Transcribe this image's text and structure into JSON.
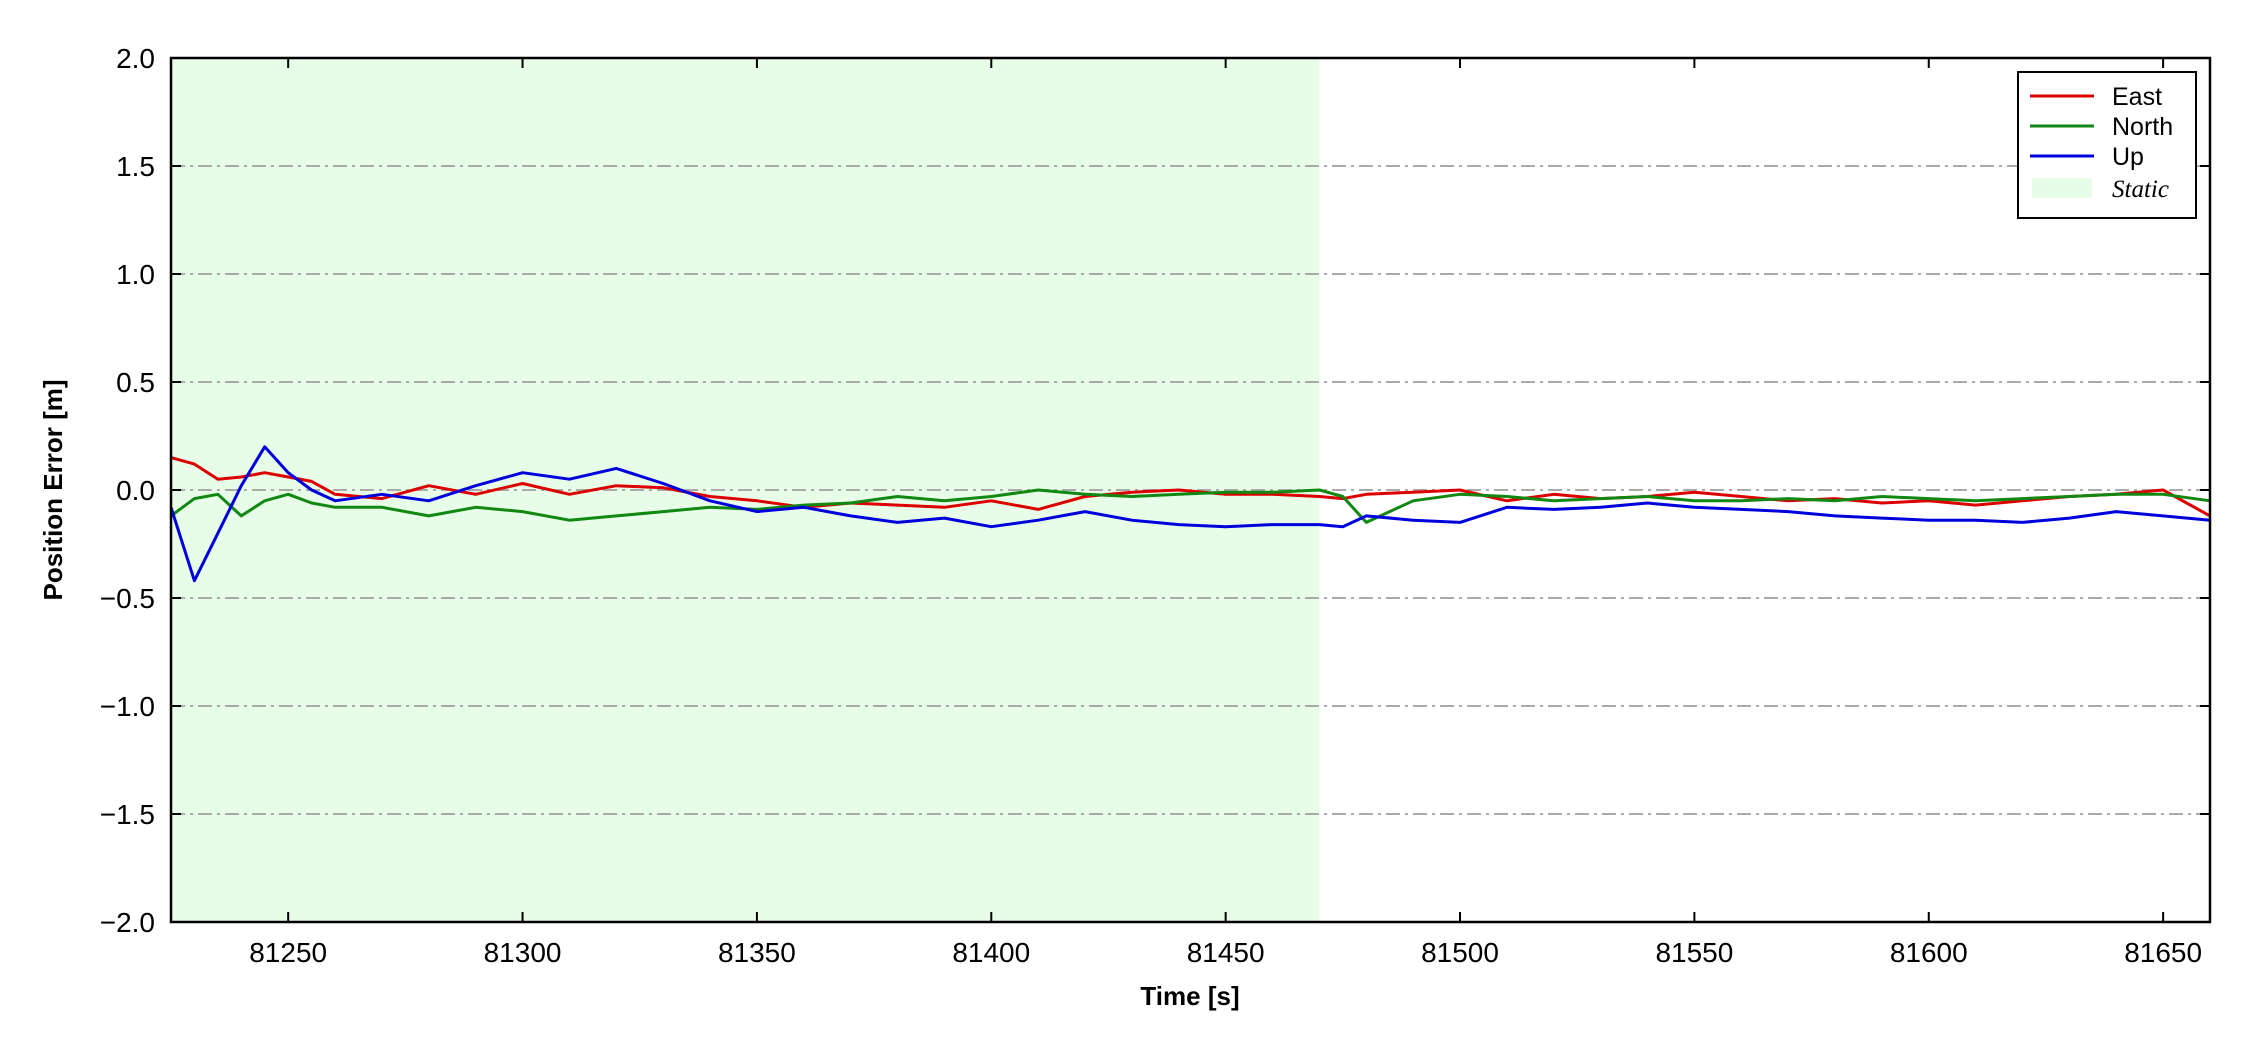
{
  "chart_data": {
    "type": "line",
    "xlabel": "Time [s]",
    "ylabel": "Position Error [m]",
    "xlim": [
      81225,
      81660
    ],
    "ylim": [
      -2.0,
      2.0
    ],
    "x_ticks": [
      81250,
      81300,
      81350,
      81400,
      81450,
      81500,
      81550,
      81600,
      81650
    ],
    "x_tick_labels": [
      "81250",
      "81300",
      "81350",
      "81400",
      "81450",
      "81500",
      "81550",
      "81600",
      "81650"
    ],
    "y_ticks": [
      -2.0,
      -1.5,
      -1.0,
      -0.5,
      0.0,
      0.5,
      1.0,
      1.5,
      2.0
    ],
    "y_tick_labels": [
      "−2.0",
      "−1.5",
      "−1.0",
      "−0.5",
      "0.0",
      "0.5",
      "1.0",
      "1.5",
      "2.0"
    ],
    "grid": "horizontal dash-dot",
    "legend_position": "top-right",
    "static_region": {
      "label": "Static",
      "x_start": 81225,
      "x_end": 81470,
      "color": "#e8fde8"
    },
    "x": [
      81225,
      81230,
      81235,
      81240,
      81245,
      81250,
      81255,
      81260,
      81270,
      81280,
      81290,
      81300,
      81310,
      81320,
      81330,
      81340,
      81350,
      81360,
      81370,
      81380,
      81390,
      81400,
      81410,
      81420,
      81430,
      81440,
      81450,
      81460,
      81470,
      81475,
      81480,
      81490,
      81500,
      81510,
      81520,
      81530,
      81540,
      81550,
      81560,
      81570,
      81580,
      81590,
      81600,
      81610,
      81620,
      81630,
      81640,
      81650,
      81660
    ],
    "series": [
      {
        "name": "East",
        "color": "#dd0000",
        "values": [
          0.15,
          0.12,
          0.05,
          0.06,
          0.08,
          0.06,
          0.04,
          -0.02,
          -0.04,
          0.02,
          -0.02,
          0.03,
          -0.02,
          0.02,
          0.01,
          -0.03,
          -0.05,
          -0.08,
          -0.06,
          -0.07,
          -0.08,
          -0.05,
          -0.09,
          -0.03,
          -0.01,
          0.0,
          -0.02,
          -0.02,
          -0.03,
          -0.04,
          -0.02,
          -0.01,
          0.0,
          -0.05,
          -0.02,
          -0.04,
          -0.03,
          -0.01,
          -0.03,
          -0.05,
          -0.04,
          -0.06,
          -0.05,
          -0.07,
          -0.05,
          -0.03,
          -0.02,
          0.0,
          -0.12
        ]
      },
      {
        "name": "North",
        "color": "#118811",
        "values": [
          -0.12,
          -0.04,
          -0.02,
          -0.12,
          -0.05,
          -0.02,
          -0.06,
          -0.08,
          -0.08,
          -0.12,
          -0.08,
          -0.1,
          -0.14,
          -0.12,
          -0.1,
          -0.08,
          -0.09,
          -0.07,
          -0.06,
          -0.03,
          -0.05,
          -0.03,
          0.0,
          -0.02,
          -0.03,
          -0.02,
          -0.01,
          -0.01,
          0.0,
          -0.03,
          -0.15,
          -0.05,
          -0.02,
          -0.03,
          -0.05,
          -0.04,
          -0.03,
          -0.05,
          -0.05,
          -0.04,
          -0.05,
          -0.03,
          -0.04,
          -0.05,
          -0.04,
          -0.03,
          -0.02,
          -0.02,
          -0.05
        ]
      },
      {
        "name": "Up",
        "color": "#0000dd",
        "values": [
          -0.08,
          -0.42,
          -0.2,
          0.02,
          0.2,
          0.08,
          0.0,
          -0.05,
          -0.02,
          -0.05,
          0.02,
          0.08,
          0.05,
          0.1,
          0.03,
          -0.05,
          -0.1,
          -0.08,
          -0.12,
          -0.15,
          -0.13,
          -0.17,
          -0.14,
          -0.1,
          -0.14,
          -0.16,
          -0.17,
          -0.16,
          -0.16,
          -0.17,
          -0.12,
          -0.14,
          -0.15,
          -0.08,
          -0.09,
          -0.08,
          -0.06,
          -0.08,
          -0.09,
          -0.1,
          -0.12,
          -0.13,
          -0.14,
          -0.14,
          -0.15,
          -0.13,
          -0.1,
          -0.12,
          -0.14
        ]
      }
    ]
  }
}
